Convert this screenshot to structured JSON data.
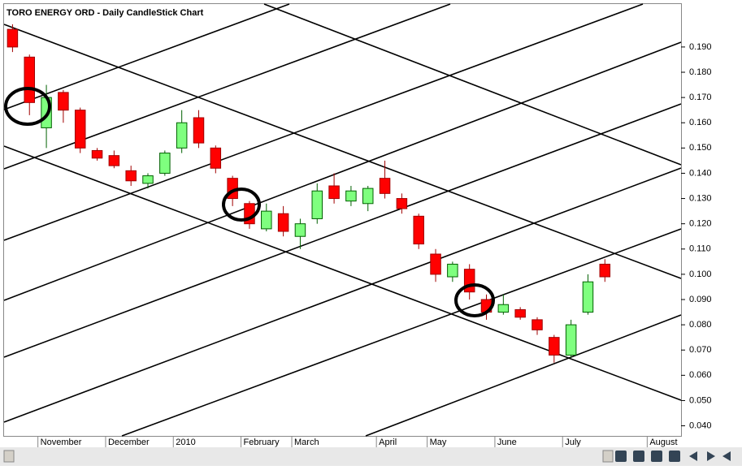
{
  "chart_data": {
    "type": "candlestick",
    "title": "TORO ENERGY ORD - Daily CandleStick Chart",
    "categories": [
      null,
      null,
      "November",
      null,
      null,
      null,
      "December",
      null,
      null,
      null,
      "2010",
      null,
      null,
      null,
      "February",
      null,
      null,
      "March",
      null,
      null,
      null,
      null,
      "April",
      null,
      null,
      "May",
      null,
      null,
      null,
      "June",
      null,
      null,
      null,
      "July",
      null,
      null,
      null,
      null,
      "August",
      null
    ],
    "open": [
      0.197,
      0.186,
      0.158,
      0.172,
      0.165,
      0.149,
      0.147,
      0.141,
      0.136,
      0.14,
      0.15,
      0.162,
      0.15,
      0.138,
      0.128,
      0.118,
      0.124,
      0.115,
      0.122,
      0.135,
      0.129,
      0.128,
      0.138,
      0.13,
      0.123,
      0.108,
      0.099,
      0.102,
      0.09,
      0.085,
      0.086,
      0.082,
      0.075,
      0.068,
      0.085,
      0.104,
      null,
      null,
      null,
      null
    ],
    "high": [
      0.199,
      0.187,
      0.175,
      0.173,
      0.166,
      0.15,
      0.149,
      0.143,
      0.14,
      0.149,
      0.165,
      0.165,
      0.151,
      0.139,
      0.129,
      0.128,
      0.127,
      0.122,
      0.136,
      0.14,
      0.135,
      0.135,
      0.145,
      0.132,
      0.124,
      0.11,
      0.105,
      0.104,
      0.092,
      0.092,
      0.087,
      0.083,
      0.076,
      0.082,
      0.1,
      0.106,
      null,
      null,
      null,
      null
    ],
    "low": [
      0.188,
      0.163,
      0.15,
      0.16,
      0.148,
      0.145,
      0.142,
      0.135,
      0.134,
      0.139,
      0.148,
      0.15,
      0.14,
      0.127,
      0.118,
      0.117,
      0.115,
      0.11,
      0.12,
      0.128,
      0.127,
      0.125,
      0.13,
      0.124,
      0.11,
      0.097,
      0.097,
      0.09,
      0.082,
      0.084,
      0.082,
      0.076,
      0.065,
      0.067,
      0.084,
      0.097,
      null,
      null,
      null,
      null
    ],
    "close": [
      0.19,
      0.168,
      0.17,
      0.165,
      0.15,
      0.146,
      0.143,
      0.137,
      0.139,
      0.148,
      0.16,
      0.152,
      0.142,
      0.13,
      0.12,
      0.125,
      0.117,
      0.12,
      0.133,
      0.13,
      0.133,
      0.134,
      0.132,
      0.126,
      0.112,
      0.1,
      0.104,
      0.093,
      0.085,
      0.088,
      0.083,
      0.078,
      0.068,
      0.08,
      0.097,
      0.099,
      null,
      null,
      null,
      null
    ],
    "up_color": "#7fff7f",
    "down_color": "#ff0000",
    "ylim": [
      0.036,
      0.207
    ],
    "yticks": [
      {
        "value": 0.04,
        "label": "0.040"
      },
      {
        "value": 0.05,
        "label": "0.050"
      },
      {
        "value": 0.06,
        "label": "0.060"
      },
      {
        "value": 0.07,
        "label": "0.070"
      },
      {
        "value": 0.08,
        "label": "0.080"
      },
      {
        "value": 0.09,
        "label": "0.090"
      },
      {
        "value": 0.1,
        "label": "0.100"
      },
      {
        "value": 0.11,
        "label": "0.110"
      },
      {
        "value": 0.12,
        "label": "0.120"
      },
      {
        "value": 0.13,
        "label": "0.130"
      },
      {
        "value": 0.14,
        "label": "0.140"
      },
      {
        "value": 0.15,
        "label": "0.150"
      },
      {
        "value": 0.16,
        "label": "0.160"
      },
      {
        "value": 0.17,
        "label": "0.170"
      },
      {
        "value": 0.18,
        "label": "0.180"
      },
      {
        "value": 0.19,
        "label": "0.190"
      }
    ],
    "grid": false
  }
}
